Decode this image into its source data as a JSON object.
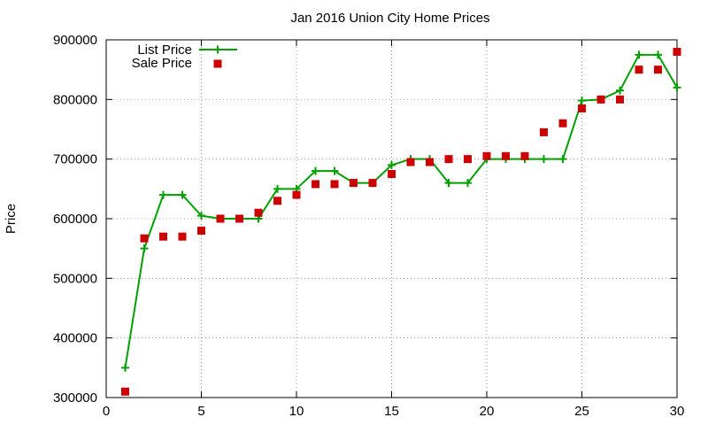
{
  "chart_data": {
    "type": "line",
    "title": "Jan 2016 Union City Home Prices",
    "xlabel": "",
    "ylabel": "Price",
    "xlim": [
      0,
      30
    ],
    "ylim": [
      300000,
      900000
    ],
    "x_ticks": [
      0,
      5,
      10,
      15,
      20,
      25,
      30
    ],
    "y_ticks": [
      300000,
      400000,
      500000,
      600000,
      700000,
      800000,
      900000
    ],
    "grid": true,
    "legend_position": "top-left",
    "series": [
      {
        "name": "List Price",
        "style": "line-with-plus-markers",
        "color": "#00a000",
        "x": [
          1,
          2,
          3,
          4,
          5,
          6,
          7,
          8,
          9,
          10,
          11,
          12,
          13,
          14,
          15,
          16,
          17,
          18,
          19,
          20,
          21,
          22,
          23,
          24,
          25,
          26,
          27,
          28,
          29,
          30
        ],
        "values": [
          350000,
          550000,
          640000,
          640000,
          605000,
          600000,
          600000,
          600000,
          650000,
          650000,
          680000,
          680000,
          660000,
          660000,
          690000,
          700000,
          700000,
          660000,
          660000,
          700000,
          700000,
          700000,
          700000,
          700000,
          798000,
          800000,
          815000,
          875000,
          875000,
          820000
        ]
      },
      {
        "name": "Sale Price",
        "style": "square-markers",
        "color": "#cc0000",
        "x": [
          1,
          2,
          3,
          4,
          5,
          6,
          7,
          8,
          9,
          10,
          11,
          12,
          13,
          14,
          15,
          16,
          17,
          18,
          19,
          20,
          21,
          22,
          23,
          24,
          25,
          26,
          27,
          28,
          29,
          30
        ],
        "values": [
          310000,
          567000,
          570000,
          570000,
          580000,
          600000,
          600000,
          610000,
          630000,
          640000,
          658000,
          658000,
          660000,
          660000,
          675000,
          695000,
          695000,
          700000,
          700000,
          705000,
          705000,
          705000,
          745000,
          760000,
          785000,
          800000,
          800000,
          850000,
          850000,
          880000
        ]
      }
    ]
  }
}
